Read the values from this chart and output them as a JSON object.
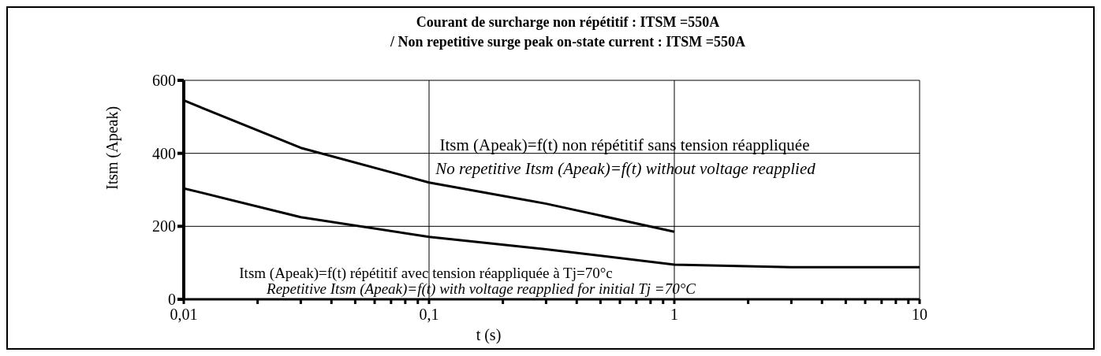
{
  "chart_data": {
    "type": "line",
    "title": "Courant de surcharge non répétitif : ITSM =550A",
    "subtitle": "/ Non repetitive surge peak on-state current  : ITSM =550A",
    "xlabel": "t (s)",
    "ylabel": "Itsm (Apeak)",
    "series": [
      {
        "color": "#000000",
        "x": [
          0.01,
          0.03,
          0.1,
          0.3,
          1
        ],
        "values": [
          545,
          415,
          320,
          262,
          185
        ]
      },
      {
        "color": "#000000",
        "x": [
          0.01,
          0.03,
          0.1,
          0.3,
          1,
          3,
          10
        ],
        "values": [
          304,
          225,
          171,
          137,
          95,
          88,
          88
        ]
      }
    ],
    "log": "x",
    "xlim": [
      0.01,
      10
    ],
    "ylim": [
      0,
      600
    ],
    "xticks": [
      {
        "value": 0.01,
        "label": "0,01"
      },
      {
        "value": 0.02,
        "label": null
      },
      {
        "value": 0.03,
        "label": null
      },
      {
        "value": 0.04,
        "label": null
      },
      {
        "value": 0.05,
        "label": null
      },
      {
        "value": 0.06,
        "label": null
      },
      {
        "value": 0.07,
        "label": null
      },
      {
        "value": 0.08,
        "label": null
      },
      {
        "value": 0.09,
        "label": null
      },
      {
        "value": 0.1,
        "label": "0,1"
      },
      {
        "value": 0.2,
        "label": null
      },
      {
        "value": 0.3,
        "label": null
      },
      {
        "value": 0.4,
        "label": null
      },
      {
        "value": 0.5,
        "label": null
      },
      {
        "value": 0.6,
        "label": null
      },
      {
        "value": 0.7,
        "label": null
      },
      {
        "value": 0.8,
        "label": null
      },
      {
        "value": 0.9,
        "label": null
      },
      {
        "value": 1,
        "label": "1"
      },
      {
        "value": 2,
        "label": null
      },
      {
        "value": 3,
        "label": null
      },
      {
        "value": 4,
        "label": null
      },
      {
        "value": 5,
        "label": null
      },
      {
        "value": 6,
        "label": null
      },
      {
        "value": 7,
        "label": null
      },
      {
        "value": 8,
        "label": null
      },
      {
        "value": 9,
        "label": null
      },
      {
        "value": 10,
        "label": "10"
      }
    ],
    "yticks": [
      0,
      200,
      400,
      600
    ],
    "grid": true,
    "marker": "none",
    "line_style": "solid",
    "annotations": [
      "Itsm (Apeak)=f(t) non répétitif sans tension réappliquée",
      "No repetitive Itsm (Apeak)=f(t) without voltage reapplied",
      "Itsm (Apeak)=f(t) répétitif avec tension réappliquée à Tj=70°c",
      "Repetitive Itsm (Apeak)=f(t) with voltage reapplied for initial Tj =70°C"
    ]
  }
}
